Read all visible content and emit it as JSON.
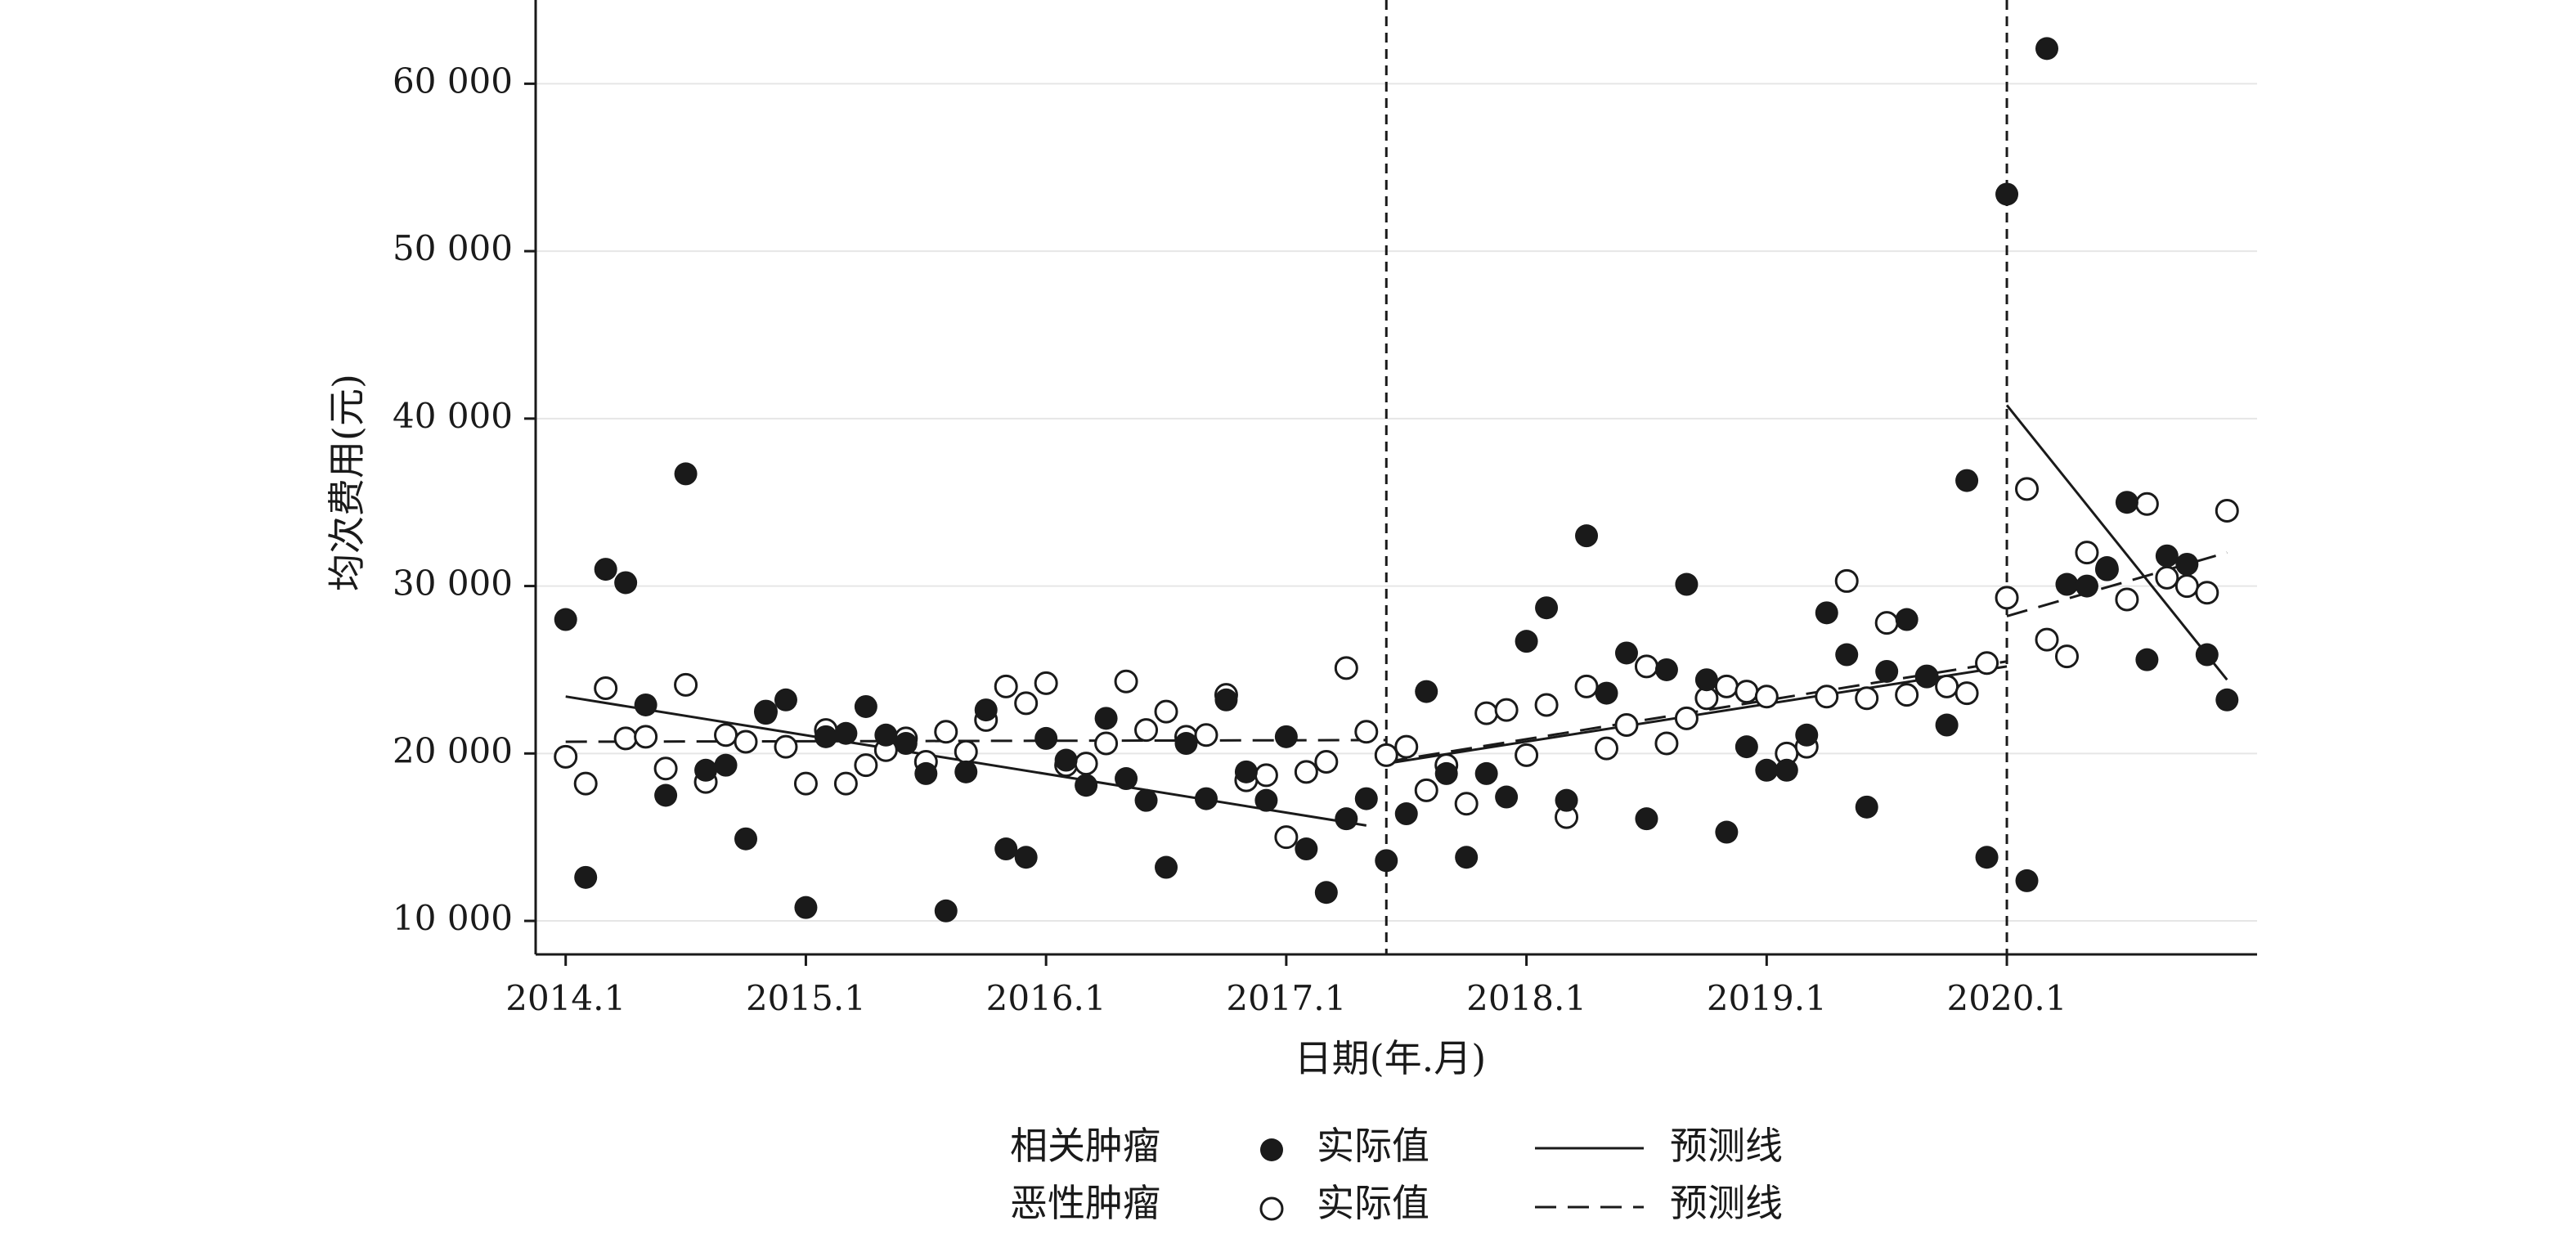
{
  "chart_data": {
    "type": "scatter",
    "ylabel": "均次费用(元)",
    "xlabel": "日期(年.月)",
    "ylim": [
      8000,
      65000
    ],
    "yticks": [
      10000,
      20000,
      30000,
      40000,
      50000,
      60000
    ],
    "ytick_labels": [
      "10 000",
      "20 000",
      "30 000",
      "40 000",
      "50 000",
      "60 000"
    ],
    "xlim": [
      -1.5,
      84.5
    ],
    "xtick_positions": [
      0,
      12,
      24,
      36,
      48,
      60,
      72
    ],
    "xtick_labels": [
      "2014.1",
      "2015.1",
      "2016.1",
      "2017.1",
      "2018.1",
      "2019.1",
      "2020.1"
    ],
    "breakpoints": [
      41,
      72
    ],
    "grid": "horizontal",
    "legend_position": "bottom",
    "series": [
      {
        "name": "相关肿瘤",
        "marker": "filled-circle",
        "color": "#1a1a1a",
        "actual_label": "实际值",
        "x": [
          0,
          1,
          2,
          3,
          4,
          5,
          6,
          7,
          8,
          9,
          10,
          11,
          12,
          13,
          14,
          15,
          16,
          17,
          18,
          19,
          20,
          21,
          22,
          23,
          24,
          25,
          26,
          27,
          28,
          29,
          30,
          31,
          32,
          33,
          34,
          35,
          36,
          37,
          38,
          39,
          40,
          41,
          42,
          43,
          44,
          45,
          46,
          47,
          48,
          49,
          50,
          51,
          52,
          53,
          54,
          55,
          56,
          57,
          58,
          59,
          60,
          61,
          62,
          63,
          64,
          65,
          66,
          67,
          68,
          69,
          70,
          71,
          72,
          73,
          74,
          75,
          76,
          77,
          78,
          79,
          80,
          81,
          82,
          83
        ],
        "y": [
          28000,
          12600,
          31000,
          30200,
          22900,
          17500,
          36700,
          19000,
          19300,
          14900,
          22400,
          23200,
          10800,
          21000,
          21200,
          22800,
          21100,
          20600,
          18800,
          10600,
          18900,
          22600,
          14300,
          13800,
          20900,
          19600,
          18100,
          22100,
          18500,
          17200,
          13200,
          20600,
          17300,
          23200,
          18900,
          17200,
          21000,
          14300,
          11700,
          16100,
          17300,
          13600,
          16400,
          23700,
          18800,
          13800,
          18800,
          17400,
          26700,
          28700,
          17200,
          33000,
          23600,
          26000,
          16100,
          25000,
          30100,
          24400,
          15300,
          20400,
          19000,
          19000,
          21100,
          28400,
          25900,
          16800,
          24900,
          28000,
          24600,
          21700,
          36300,
          13800,
          53400,
          12400,
          62100,
          30100,
          30000,
          31100,
          35000,
          25600,
          31800,
          31300,
          25900,
          23200
        ],
        "trend": {
          "label": "预测线",
          "segments": [
            {
              "x": [
                0,
                40
              ],
              "y": [
                23400,
                15700
              ]
            },
            {
              "x": [
                41,
                72
              ],
              "y": [
                19400,
                25200
              ]
            },
            {
              "x": [
                72,
                83
              ],
              "y": [
                40800,
                24400
              ]
            }
          ]
        }
      },
      {
        "name": "恶性肿瘤",
        "marker": "open-circle",
        "color": "#1a1a1a",
        "actual_label": "实际值",
        "x": [
          0,
          1,
          2,
          3,
          4,
          5,
          6,
          7,
          8,
          9,
          10,
          11,
          12,
          13,
          14,
          15,
          16,
          17,
          18,
          19,
          20,
          21,
          22,
          23,
          24,
          25,
          26,
          27,
          28,
          29,
          30,
          31,
          32,
          33,
          34,
          35,
          36,
          37,
          38,
          39,
          40,
          41,
          42,
          43,
          44,
          45,
          46,
          47,
          48,
          49,
          50,
          51,
          52,
          53,
          54,
          55,
          56,
          57,
          58,
          59,
          60,
          61,
          62,
          63,
          64,
          65,
          66,
          67,
          68,
          69,
          70,
          71,
          72,
          73,
          74,
          75,
          76,
          77,
          78,
          79,
          80,
          81,
          82,
          83
        ],
        "y": [
          19800,
          18200,
          23900,
          20900,
          21000,
          19100,
          24100,
          18300,
          21100,
          20700,
          22500,
          20400,
          18200,
          21400,
          18200,
          19300,
          20200,
          20900,
          19500,
          21300,
          20100,
          22000,
          24000,
          23000,
          24200,
          19300,
          19400,
          20600,
          24300,
          21400,
          22500,
          21000,
          21100,
          23500,
          18400,
          18700,
          15000,
          18900,
          19500,
          25100,
          21300,
          19900,
          20400,
          17800,
          19300,
          17000,
          22400,
          22600,
          19900,
          22900,
          16200,
          24000,
          20300,
          21700,
          25200,
          20600,
          22100,
          23300,
          24000,
          23700,
          23400,
          20000,
          20400,
          23400,
          30300,
          23300,
          27800,
          23500,
          24600,
          24000,
          23600,
          25400,
          29300,
          35800,
          26800,
          25800,
          32000,
          31000,
          29200,
          34900,
          30500,
          30000,
          29600,
          34500
        ],
        "trend": {
          "label": "预测线",
          "segments": [
            {
              "x": [
                0,
                41
              ],
              "y": [
                20700,
                20800
              ]
            },
            {
              "x": [
                41,
                72
              ],
              "y": [
                19500,
                25500
              ]
            },
            {
              "x": [
                72,
                83
              ],
              "y": [
                28200,
                32000
              ]
            }
          ]
        }
      }
    ]
  }
}
